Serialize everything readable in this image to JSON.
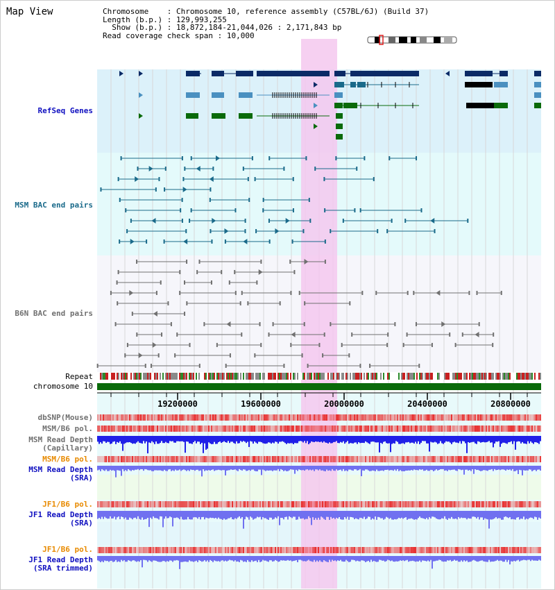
{
  "title": "Map View",
  "info": {
    "chromosome_key": "Chromosome",
    "chromosome_val": "Chromosome 10, reference assembly (C57BL/6J) (Build 37)",
    "length_key": "Length (b.p.)",
    "length_val": "129,993,255",
    "show_key": "Show (b.p.)",
    "show_val": "18,872,184-21,044,026 : 2,171,843 bp",
    "coverage_key": "Read coverage check span",
    "coverage_val": "10,000"
  },
  "tracks": {
    "refseq": "RefSeq Genes",
    "msm_bac": "MSM BAC end pairs",
    "b6n_bac": "B6N BAC end pairs",
    "repeat": "Repeat",
    "chromosome": "chromosome 10",
    "dbsnp": "dbSNP(Mouse)",
    "msm_b6_pol_1": "MSM/B6 pol.",
    "msm_read_depth_cap_1": "MSM Read Depth",
    "msm_read_depth_cap_2": "(Capillary)",
    "msm_b6_pol_2": "MSM/B6 pol.",
    "msm_read_depth_sra_1": "MSM Read Depth",
    "msm_read_depth_sra_2": "(SRA)",
    "jf1_b6_pol_1": "JF1/B6 pol.",
    "jf1_read_depth_sra_1": "JF1 Read Depth",
    "jf1_read_depth_sra_2": "(SRA)",
    "jf1_b6_pol_2": "JF1/B6 pol.",
    "jf1_read_depth_trim_1": "JF1 Read Depth",
    "jf1_read_depth_trim_2": "(SRA trimmed)"
  },
  "axis": {
    "ticks": [
      "19200000",
      "19600000",
      "20000000",
      "20400000",
      "20800000"
    ]
  },
  "colors": {
    "refseq_dark": "#0b2a66",
    "refseq_light": "#4a90c0",
    "refseq_green": "#0a6a0a",
    "msm_bac": "#1a6a8a",
    "b6n_bac": "#707070",
    "highlight": "#f5c8ee",
    "snp_red": "#e83030",
    "depth_blue": "#2020e8",
    "depth_lightblue": "#7070f0",
    "label_blue": "#1010c0",
    "label_teal": "#1a6a8a",
    "label_gray": "#707070",
    "label_orange": "#e88a00"
  }
}
